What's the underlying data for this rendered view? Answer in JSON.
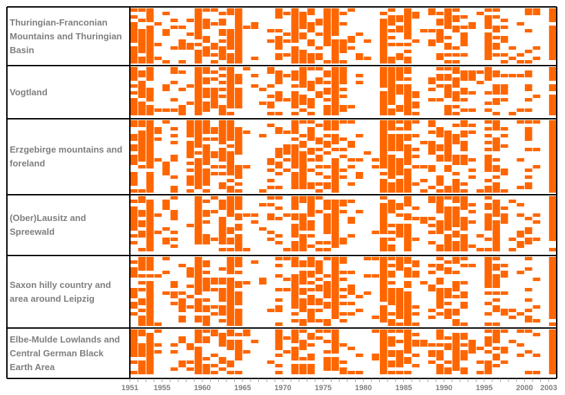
{
  "chart_data": {
    "type": "heatmap",
    "color": "#ff6600",
    "x": [
      1951,
      1952,
      1953,
      1954,
      1955,
      1956,
      1957,
      1958,
      1959,
      1960,
      1961,
      1962,
      1963,
      1964,
      1965,
      1966,
      1967,
      1968,
      1969,
      1970,
      1971,
      1972,
      1973,
      1974,
      1975,
      1976,
      1977,
      1978,
      1979,
      1980,
      1981,
      1982,
      1983,
      1984,
      1985,
      1986,
      1987,
      1988,
      1989,
      1990,
      1991,
      1992,
      1993,
      1994,
      1995,
      1996,
      1997,
      1998,
      1999,
      2000,
      2001,
      2002,
      2003
    ],
    "xlim": [
      1951,
      2003
    ],
    "xticks": [
      1951,
      1955,
      1960,
      1965,
      1970,
      1975,
      1980,
      1985,
      1990,
      1995,
      2000,
      2003
    ],
    "series": [
      {
        "name": "Thuringian-Franconian Mountains and Thuringian Basin",
        "values": [
          0.6,
          0.7,
          0.9,
          0.2,
          0.3,
          0.3,
          0.2,
          0.3,
          0.9,
          0.6,
          0.4,
          0.6,
          0.8,
          0.8,
          0.1,
          0.1,
          0.1,
          0.2,
          0.6,
          0.2,
          0.8,
          0.7,
          0.5,
          0.4,
          0.6,
          0.9,
          0.4,
          0.2,
          0.1,
          0.1,
          0.1,
          0.9,
          0.7,
          0.6,
          0.8,
          0.3,
          0.1,
          0.3,
          0.6,
          0.8,
          0.7,
          0.5,
          0.2,
          0.1,
          0.6,
          0.7,
          0.4,
          0.1,
          0.2,
          0.4,
          0.2,
          0.0,
          0.9
        ]
      },
      {
        "name": "Vogtland",
        "values": [
          0.6,
          0.8,
          0.9,
          0.2,
          0.2,
          0.4,
          0.3,
          0.3,
          0.9,
          0.7,
          0.3,
          0.5,
          0.8,
          0.7,
          0.1,
          0.2,
          0.2,
          0.3,
          0.6,
          0.2,
          0.8,
          0.7,
          0.6,
          0.4,
          0.6,
          0.9,
          0.4,
          0.2,
          0.1,
          0.1,
          0.1,
          0.9,
          0.8,
          0.6,
          0.8,
          0.4,
          0.1,
          0.3,
          0.5,
          0.7,
          0.6,
          0.5,
          0.2,
          0.1,
          0.6,
          0.7,
          0.4,
          0.1,
          0.2,
          0.5,
          0.2,
          0.0,
          0.9
        ]
      },
      {
        "name": "Erzgebirge mountains and foreland",
        "values": [
          0.6,
          0.7,
          0.9,
          0.2,
          0.2,
          0.3,
          0.2,
          0.4,
          0.9,
          0.7,
          0.4,
          0.6,
          0.8,
          0.8,
          0.1,
          0.1,
          0.1,
          0.2,
          0.6,
          0.2,
          0.8,
          0.7,
          0.5,
          0.5,
          0.6,
          0.9,
          0.4,
          0.3,
          0.1,
          0.1,
          0.1,
          0.9,
          0.8,
          0.7,
          0.8,
          0.3,
          0.1,
          0.3,
          0.6,
          0.6,
          0.6,
          0.4,
          0.2,
          0.1,
          0.6,
          0.7,
          0.3,
          0.1,
          0.2,
          0.5,
          0.2,
          0.0,
          0.9
        ]
      },
      {
        "name": "(Ober)Lausitz and Spreewald",
        "values": [
          0.5,
          0.7,
          0.9,
          0.2,
          0.3,
          0.3,
          0.2,
          0.3,
          0.8,
          0.6,
          0.3,
          0.5,
          0.8,
          0.8,
          0.1,
          0.1,
          0.1,
          0.2,
          0.5,
          0.2,
          0.8,
          0.7,
          0.5,
          0.4,
          0.6,
          0.9,
          0.4,
          0.2,
          0.1,
          0.1,
          0.1,
          0.9,
          0.7,
          0.6,
          0.8,
          0.3,
          0.1,
          0.3,
          0.7,
          0.8,
          0.7,
          0.6,
          0.2,
          0.1,
          0.6,
          0.7,
          0.3,
          0.1,
          0.2,
          0.4,
          0.2,
          0.0,
          0.9
        ]
      },
      {
        "name": "Saxon hilly country and area around Leipzig",
        "values": [
          0.6,
          0.7,
          0.9,
          0.2,
          0.2,
          0.3,
          0.3,
          0.3,
          0.9,
          0.6,
          0.3,
          0.5,
          0.8,
          0.8,
          0.1,
          0.1,
          0.1,
          0.2,
          0.6,
          0.2,
          0.8,
          0.7,
          0.5,
          0.4,
          0.6,
          0.9,
          0.4,
          0.2,
          0.1,
          0.1,
          0.2,
          0.9,
          0.7,
          0.6,
          0.8,
          0.3,
          0.1,
          0.3,
          0.6,
          0.7,
          0.6,
          0.5,
          0.2,
          0.1,
          0.6,
          0.7,
          0.3,
          0.1,
          0.2,
          0.4,
          0.2,
          0.0,
          0.9
        ]
      },
      {
        "name": "Elbe-Mulde Lowlands and Central German Black Earth Area",
        "values": [
          0.6,
          0.7,
          0.9,
          0.2,
          0.2,
          0.3,
          0.2,
          0.3,
          0.9,
          0.6,
          0.3,
          0.5,
          0.8,
          0.8,
          0.1,
          0.1,
          0.1,
          0.2,
          0.6,
          0.2,
          0.8,
          0.7,
          0.5,
          0.4,
          0.6,
          0.9,
          0.4,
          0.2,
          0.1,
          0.1,
          0.1,
          0.9,
          0.7,
          0.6,
          0.8,
          0.3,
          0.1,
          0.3,
          0.7,
          0.7,
          0.6,
          0.5,
          0.2,
          0.1,
          0.6,
          0.7,
          0.3,
          0.1,
          0.2,
          0.4,
          0.2,
          0.0,
          0.9
        ]
      }
    ]
  }
}
